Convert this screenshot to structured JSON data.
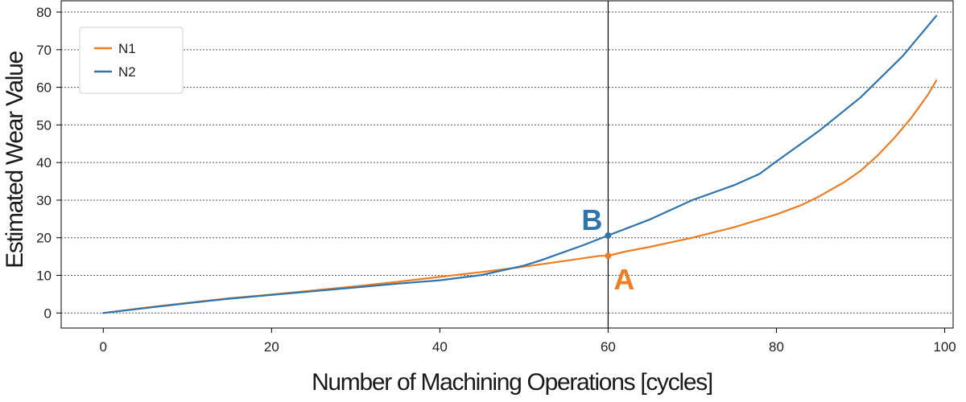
{
  "chart_data": {
    "type": "line",
    "xlabel": "Number of Machining Operations [cycles]",
    "ylabel": "Estimated Wear Value",
    "xlim": [
      -5,
      101
    ],
    "ylim": [
      -4,
      83
    ],
    "x_ticks": [
      0,
      20,
      40,
      60,
      80,
      100
    ],
    "y_ticks": [
      0,
      10,
      20,
      30,
      40,
      50,
      60,
      70,
      80
    ],
    "grid": "horizontal dotted",
    "legend_position": "top-left",
    "vline_x": 60,
    "series": [
      {
        "name": "N1",
        "color": "#ee7d23",
        "x": [
          0,
          5,
          10,
          15,
          20,
          25,
          30,
          35,
          40,
          45,
          50,
          55,
          59,
          60,
          62,
          65,
          70,
          75,
          80,
          83,
          85,
          88,
          90,
          92,
          94,
          96,
          98,
          99
        ],
        "y": [
          0,
          1.4,
          2.7,
          3.9,
          4.9,
          6.0,
          7.1,
          8.3,
          9.6,
          10.9,
          12.3,
          13.9,
          15.2,
          15.2,
          16.3,
          17.6,
          20.0,
          22.8,
          26.2,
          28.7,
          30.9,
          34.7,
          37.8,
          41.8,
          46.5,
          51.8,
          58.0,
          61.8
        ]
      },
      {
        "name": "N2",
        "color": "#2e75b0",
        "x": [
          0,
          5,
          10,
          15,
          20,
          25,
          30,
          35,
          40,
          45,
          50,
          52,
          54,
          57,
          60,
          65,
          70,
          75,
          78,
          80,
          85,
          90,
          95,
          99
        ],
        "y": [
          0,
          1.3,
          2.6,
          3.8,
          4.8,
          5.8,
          6.8,
          7.8,
          8.7,
          10.1,
          12.6,
          14.0,
          15.6,
          18.0,
          20.6,
          24.9,
          30.0,
          34.0,
          37.0,
          40.3,
          48.3,
          57.3,
          68.3,
          79.0
        ]
      }
    ],
    "markers": [
      {
        "label": "A",
        "series": "N1",
        "x": 60,
        "y": 15.2,
        "color": "#ee7d23"
      },
      {
        "label": "B",
        "series": "N2",
        "x": 60,
        "y": 20.6,
        "color": "#2e75b0"
      }
    ]
  }
}
